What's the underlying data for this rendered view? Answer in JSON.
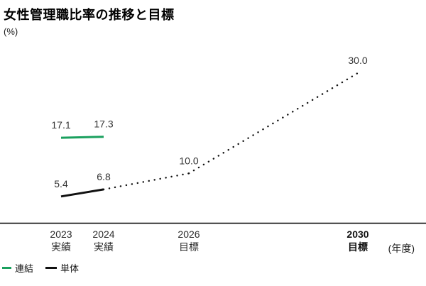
{
  "title": "女性管理職比率の推移と目標",
  "y_unit": "(%)",
  "x_unit": "(年度)",
  "chart_data": {
    "type": "line",
    "title": "女性管理職比率の推移と目標",
    "ylabel": "(%)",
    "xlabel": "(年度)",
    "ylim": [
      0,
      32
    ],
    "grid": false,
    "legend_position": "bottom-left",
    "categories": [
      {
        "year": "2023",
        "sub": "実績",
        "bold": false
      },
      {
        "year": "2024",
        "sub": "実績",
        "bold": false
      },
      {
        "year": "2026",
        "sub": "目標",
        "bold": false
      },
      {
        "year": "2030",
        "sub": "目標",
        "bold": true
      }
    ],
    "series": [
      {
        "name": "連結",
        "color": "#1aa05e",
        "points": [
          {
            "year": "2023",
            "value": 17.1,
            "label": "17.1",
            "kind": "actual"
          },
          {
            "year": "2024",
            "value": 17.3,
            "label": "17.3",
            "kind": "actual"
          }
        ]
      },
      {
        "name": "単体",
        "color": "#111111",
        "points": [
          {
            "year": "2023",
            "value": 5.4,
            "label": "5.4",
            "kind": "actual"
          },
          {
            "year": "2024",
            "value": 6.8,
            "label": "6.8",
            "kind": "actual"
          },
          {
            "year": "2026",
            "value": 10.0,
            "label": "10.0",
            "kind": "target"
          },
          {
            "year": "2030",
            "value": 30.0,
            "label": "30.0",
            "kind": "target"
          }
        ]
      }
    ],
    "legend": [
      {
        "label": "連結",
        "color": "#1aa05e"
      },
      {
        "label": "単体",
        "color": "#111111"
      }
    ]
  }
}
